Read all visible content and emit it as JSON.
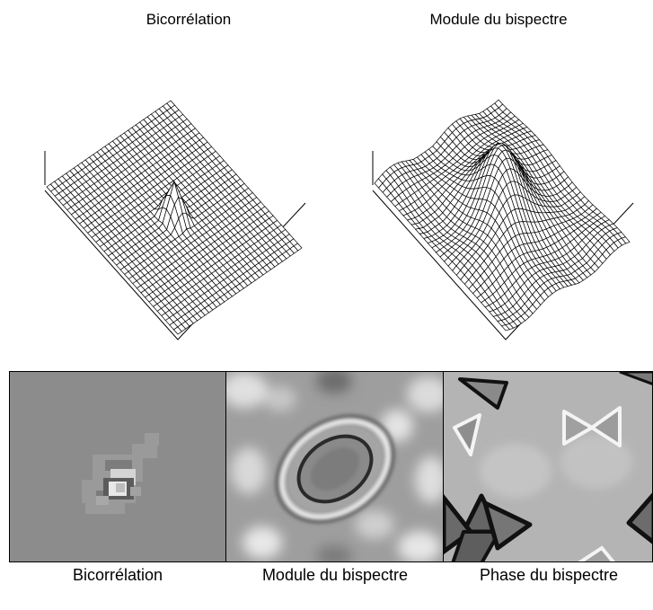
{
  "top_titles": {
    "left": "Bicorrélation",
    "right": "Module du bispectre"
  },
  "bottom_labels": {
    "left": "Bicorrélation",
    "middle": "Module du bispectre",
    "right": "Phase du bispectre"
  },
  "colors": {
    "background": "#ffffff",
    "grid_line": "#000000",
    "gray_mid": "#8c8c8c",
    "gray_light": "#c8c8c8",
    "gray_dark": "#5a5a5a"
  }
}
